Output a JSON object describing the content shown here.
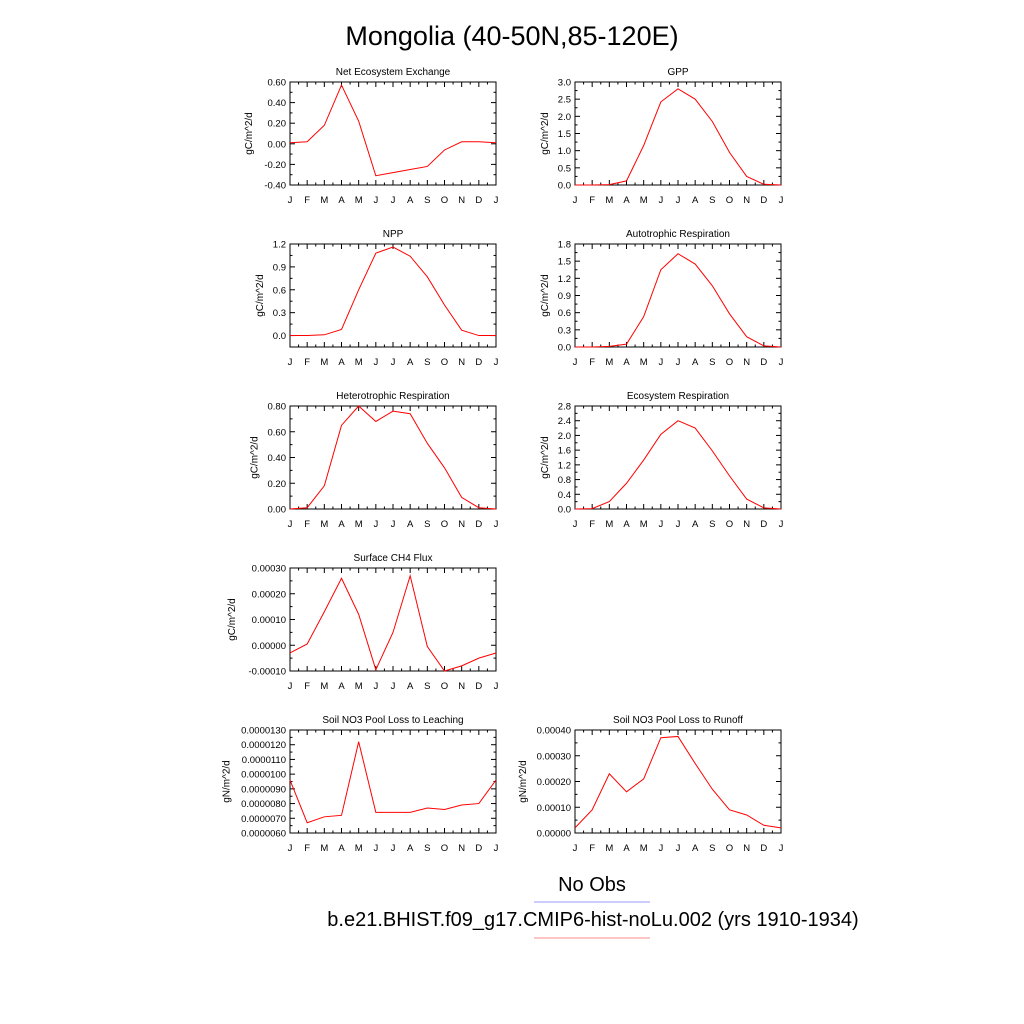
{
  "figure": {
    "title": "Mongolia (40-50N,85-120E)"
  },
  "legend": {
    "items": [
      {
        "label": "No Obs",
        "color": "#9999ff"
      },
      {
        "label": "b.e21.BHIST.f09_g17.CMIP6-hist-noLu.002 (yrs 1910-1934)",
        "color": "#ff8888"
      }
    ]
  },
  "colors": {
    "series": "#ff0000"
  },
  "chart_data": [
    {
      "type": "line",
      "title": "Net Ecosystem Exchange",
      "ylabel": "gC/m^2/d",
      "categories": [
        "J",
        "F",
        "M",
        "A",
        "M",
        "J",
        "J",
        "A",
        "S",
        "O",
        "N",
        "D",
        "J"
      ],
      "ylim": [
        -0.4,
        0.6
      ],
      "yticks": [
        "-0.40",
        "-0.20",
        "0.00",
        "0.20",
        "0.40",
        "0.60"
      ],
      "series": [
        {
          "values": [
            0.01,
            0.02,
            0.18,
            0.57,
            0.22,
            -0.31,
            -0.28,
            -0.25,
            -0.22,
            -0.06,
            0.02,
            0.02,
            0.01
          ]
        }
      ]
    },
    {
      "type": "line",
      "title": "GPP",
      "ylabel": "gC/m^2/d",
      "categories": [
        "J",
        "F",
        "M",
        "A",
        "M",
        "J",
        "J",
        "A",
        "S",
        "O",
        "N",
        "D",
        "J"
      ],
      "ylim": [
        0,
        3.0
      ],
      "yticks": [
        "0.0",
        "0.5",
        "1.0",
        "1.5",
        "2.0",
        "2.5",
        "3.0"
      ],
      "series": [
        {
          "values": [
            0.0,
            0.0,
            0.01,
            0.12,
            1.15,
            2.42,
            2.8,
            2.5,
            1.85,
            0.95,
            0.25,
            0.02,
            0.0
          ]
        }
      ]
    },
    {
      "type": "line",
      "title": "NPP",
      "ylabel": "gC/m^2/d",
      "categories": [
        "J",
        "F",
        "M",
        "A",
        "M",
        "J",
        "J",
        "A",
        "S",
        "O",
        "N",
        "D",
        "J"
      ],
      "ylim": [
        -0.15,
        1.2
      ],
      "yticks": [
        "0.0",
        "0.3",
        "0.6",
        "0.9",
        "1.2"
      ],
      "series": [
        {
          "values": [
            0.0,
            0.0,
            0.01,
            0.08,
            0.6,
            1.08,
            1.16,
            1.04,
            0.77,
            0.4,
            0.07,
            0.0,
            0.0
          ]
        }
      ]
    },
    {
      "type": "line",
      "title": "Autotrophic Respiration",
      "ylabel": "gC/m^2/d",
      "categories": [
        "J",
        "F",
        "M",
        "A",
        "M",
        "J",
        "J",
        "A",
        "S",
        "O",
        "N",
        "D",
        "J"
      ],
      "ylim": [
        0,
        1.8
      ],
      "yticks": [
        "0.0",
        "0.3",
        "0.6",
        "0.9",
        "1.2",
        "1.5",
        "1.8"
      ],
      "series": [
        {
          "values": [
            0.0,
            0.0,
            0.01,
            0.05,
            0.53,
            1.35,
            1.63,
            1.45,
            1.07,
            0.58,
            0.18,
            0.02,
            0.0
          ]
        }
      ]
    },
    {
      "type": "line",
      "title": "Heterotrophic Respiration",
      "ylabel": "gC/m^2/d",
      "categories": [
        "J",
        "F",
        "M",
        "A",
        "M",
        "J",
        "J",
        "A",
        "S",
        "O",
        "N",
        "D",
        "J"
      ],
      "ylim": [
        0,
        0.8
      ],
      "yticks": [
        "0.00",
        "0.20",
        "0.40",
        "0.60",
        "0.80"
      ],
      "series": [
        {
          "values": [
            0.0,
            0.01,
            0.18,
            0.65,
            0.8,
            0.68,
            0.76,
            0.74,
            0.51,
            0.32,
            0.09,
            0.01,
            0.0
          ]
        }
      ]
    },
    {
      "type": "line",
      "title": "Ecosystem Respiration",
      "ylabel": "gC/m^2/d",
      "categories": [
        "J",
        "F",
        "M",
        "A",
        "M",
        "J",
        "J",
        "A",
        "S",
        "O",
        "N",
        "D",
        "J"
      ],
      "ylim": [
        0,
        2.8
      ],
      "yticks": [
        "0.0",
        "0.4",
        "0.8",
        "1.2",
        "1.6",
        "2.0",
        "2.4",
        "2.8"
      ],
      "series": [
        {
          "values": [
            0.0,
            0.01,
            0.2,
            0.7,
            1.33,
            2.03,
            2.4,
            2.2,
            1.58,
            0.9,
            0.27,
            0.03,
            0.0
          ]
        }
      ]
    },
    {
      "type": "line",
      "title": "Surface CH4 Flux",
      "ylabel": "gC/m^2/d",
      "categories": [
        "J",
        "F",
        "M",
        "A",
        "M",
        "J",
        "J",
        "A",
        "S",
        "O",
        "N",
        "D",
        "J"
      ],
      "ylim": [
        -0.0001,
        0.0003
      ],
      "yticks": [
        "-0.00010",
        "0.00000",
        "0.00010",
        "0.00020",
        "0.00030"
      ],
      "series": [
        {
          "values": [
            -3e-05,
            5e-06,
            0.00013,
            0.00026,
            0.00012,
            -9.5e-05,
            5e-05,
            0.00027,
            -5e-06,
            -0.0001,
            -8e-05,
            -5e-05,
            -3e-05
          ]
        }
      ]
    },
    {
      "type": "line",
      "title": "Soil NO3 Pool Loss to Leaching",
      "ylabel": "gN/m^2/d",
      "categories": [
        "J",
        "F",
        "M",
        "A",
        "M",
        "J",
        "J",
        "A",
        "S",
        "O",
        "N",
        "D",
        "J"
      ],
      "ylim": [
        6e-06,
        1.3e-05
      ],
      "yticks": [
        "0.0000060",
        "0.0000070",
        "0.0000080",
        "0.0000090",
        "0.0000100",
        "0.0000110",
        "0.0000120",
        "0.0000130"
      ],
      "series": [
        {
          "values": [
            9.6e-06,
            6.7e-06,
            7.1e-06,
            7.2e-06,
            1.22e-05,
            7.4e-06,
            7.4e-06,
            7.4e-06,
            7.7e-06,
            7.6e-06,
            7.9e-06,
            8e-06,
            9.6e-06
          ]
        }
      ]
    },
    {
      "type": "line",
      "title": "Soil NO3 Pool Loss to Runoff",
      "ylabel": "gN/m^2/d",
      "categories": [
        "J",
        "F",
        "M",
        "A",
        "M",
        "J",
        "J",
        "A",
        "S",
        "O",
        "N",
        "D",
        "J"
      ],
      "ylim": [
        0,
        0.0004
      ],
      "yticks": [
        "0.00000",
        "0.00010",
        "0.00020",
        "0.00030",
        "0.00040"
      ],
      "series": [
        {
          "values": [
            2e-05,
            9e-05,
            0.00023,
            0.00016,
            0.00021,
            0.00037,
            0.000375,
            0.00027,
            0.00017,
            9e-05,
            7e-05,
            3e-05,
            2e-05
          ]
        }
      ]
    }
  ]
}
